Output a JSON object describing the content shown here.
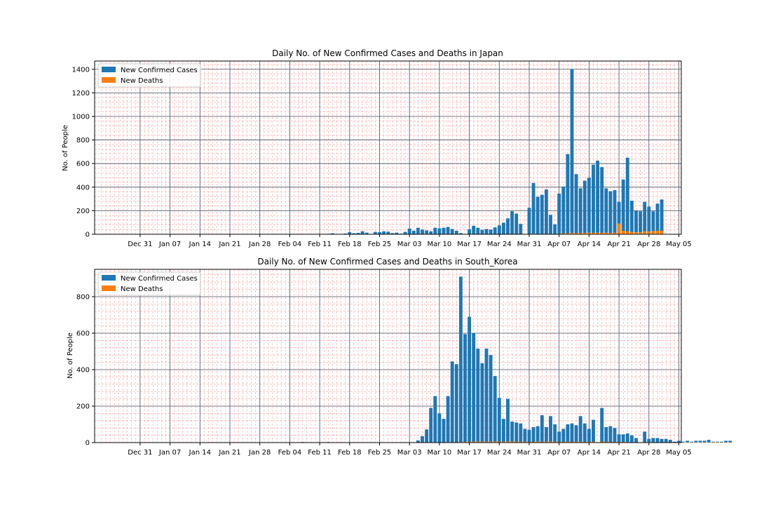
{
  "chart_data": [
    {
      "type": "bar",
      "stacked": false,
      "title": "Daily No. of New Confirmed Cases and Deaths in Japan",
      "xlabel": "",
      "ylabel": "No. of People",
      "ylim": [
        0,
        1470
      ],
      "yticks": [
        0,
        200,
        400,
        600,
        800,
        1000,
        1200,
        1400
      ],
      "x_start": "2019-12-22",
      "xticks": [
        "Dec 31",
        "Jan 07",
        "Jan 14",
        "Jan 21",
        "Jan 28",
        "Feb 04",
        "Feb 11",
        "Feb 18",
        "Feb 25",
        "Mar 03",
        "Mar 10",
        "Mar 17",
        "Mar 24",
        "Mar 31",
        "Apr 07",
        "Apr 14",
        "Apr 21",
        "Apr 28",
        "May 05"
      ],
      "grid": true,
      "legend_position": "top-left",
      "series": [
        {
          "name": "New Confirmed Cases",
          "color": "#1f77b4",
          "values": [
            0,
            0,
            0,
            0,
            0,
            0,
            0,
            0,
            0,
            0,
            0,
            0,
            0,
            0,
            0,
            0,
            0,
            0,
            0,
            0,
            0,
            0,
            0,
            0,
            0,
            0,
            0,
            0,
            0,
            0,
            0,
            0,
            0,
            0,
            0,
            0,
            0,
            0,
            0,
            0,
            0,
            0,
            0,
            0,
            0,
            0,
            0,
            0,
            0,
            0,
            0,
            0,
            0,
            4,
            8,
            3,
            0,
            6,
            18,
            9,
            12,
            25,
            14,
            0,
            20,
            18,
            25,
            22,
            10,
            14,
            5,
            20,
            48,
            30,
            55,
            40,
            33,
            25,
            55,
            50,
            55,
            62,
            45,
            30,
            10,
            0,
            42,
            72,
            55,
            38,
            45,
            40,
            58,
            75,
            98,
            135,
            195,
            175,
            88,
            0,
            225,
            435,
            318,
            335,
            380,
            165,
            85,
            345,
            405,
            680,
            1400,
            510,
            390,
            455,
            480,
            590,
            625,
            570,
            390,
            365,
            375,
            275,
            465,
            650,
            285,
            200,
            195,
            275,
            235,
            195,
            260,
            295
          ]
        },
        {
          "name": "New Deaths",
          "color": "#ff7f0e",
          "values": [
            0,
            0,
            0,
            0,
            0,
            0,
            0,
            0,
            0,
            0,
            0,
            0,
            0,
            0,
            0,
            0,
            0,
            0,
            0,
            0,
            0,
            0,
            0,
            0,
            0,
            0,
            0,
            0,
            0,
            0,
            0,
            0,
            0,
            0,
            0,
            0,
            0,
            0,
            0,
            0,
            0,
            0,
            0,
            0,
            0,
            0,
            0,
            0,
            0,
            0,
            0,
            0,
            0,
            0,
            0,
            0,
            0,
            0,
            0,
            0,
            0,
            1,
            0,
            0,
            1,
            0,
            1,
            0,
            0,
            1,
            0,
            1,
            0,
            1,
            1,
            0,
            1,
            0,
            1,
            0,
            1,
            1,
            0,
            1,
            0,
            0,
            1,
            1,
            0,
            1,
            1,
            0,
            1,
            1,
            1,
            2,
            2,
            3,
            1,
            0,
            3,
            5,
            3,
            4,
            3,
            4,
            3,
            5,
            8,
            8,
            12,
            10,
            10,
            12,
            13,
            12,
            13,
            12,
            14,
            11,
            13,
            91,
            30,
            25,
            20,
            18,
            18,
            25,
            24,
            28,
            30,
            30
          ]
        }
      ]
    },
    {
      "type": "bar",
      "stacked": false,
      "title": "Daily No. of New Confirmed Cases and Deaths in South_Korea",
      "xlabel": "",
      "ylabel": "No. of People",
      "ylim": [
        0,
        950
      ],
      "yticks": [
        0,
        200,
        400,
        600,
        800
      ],
      "x_start": "2019-12-22",
      "xticks": [
        "Dec 31",
        "Jan 07",
        "Jan 14",
        "Jan 21",
        "Jan 28",
        "Feb 04",
        "Feb 11",
        "Feb 18",
        "Feb 25",
        "Mar 03",
        "Mar 10",
        "Mar 17",
        "Mar 24",
        "Mar 31",
        "Apr 07",
        "Apr 14",
        "Apr 21",
        "Apr 28",
        "May 05"
      ],
      "grid": true,
      "legend_position": "top-left",
      "series": [
        {
          "name": "New Confirmed Cases",
          "color": "#1f77b4",
          "values": [
            0,
            0,
            0,
            0,
            0,
            0,
            0,
            0,
            0,
            0,
            0,
            0,
            0,
            0,
            0,
            0,
            0,
            0,
            0,
            0,
            0,
            0,
            0,
            0,
            0,
            0,
            0,
            0,
            0,
            0,
            0,
            0,
            0,
            0,
            0,
            0,
            0,
            0,
            0,
            0,
            0,
            0,
            0,
            0,
            0,
            2,
            1,
            3,
            2,
            0,
            0,
            0,
            1,
            3,
            1,
            0,
            0,
            0,
            0,
            2,
            0,
            0,
            0,
            0,
            0,
            0,
            0,
            0,
            0,
            0,
            0,
            0,
            0,
            0,
            12,
            35,
            72,
            190,
            255,
            160,
            130,
            255,
            445,
            430,
            910,
            595,
            690,
            600,
            515,
            435,
            515,
            480,
            365,
            245,
            130,
            240,
            115,
            110,
            105,
            75,
            70,
            85,
            90,
            150,
            85,
            145,
            100,
            60,
            75,
            100,
            105,
            95,
            145,
            105,
            75,
            125,
            0,
            190,
            85,
            90,
            80,
            45,
            45,
            50,
            40,
            25,
            0,
            60,
            20,
            25,
            25,
            20,
            20,
            15,
            5,
            10,
            5,
            10,
            5,
            10,
            10,
            10,
            15,
            5,
            5,
            5,
            10,
            10
          ]
        },
        {
          "name": "New Deaths",
          "color": "#ff7f0e",
          "values": [
            0,
            0,
            0,
            0,
            0,
            0,
            0,
            0,
            0,
            0,
            0,
            0,
            0,
            0,
            0,
            0,
            0,
            0,
            0,
            0,
            0,
            0,
            0,
            0,
            0,
            0,
            0,
            0,
            0,
            0,
            0,
            0,
            0,
            0,
            0,
            0,
            0,
            0,
            0,
            0,
            0,
            0,
            0,
            0,
            0,
            0,
            0,
            0,
            0,
            0,
            0,
            0,
            0,
            0,
            0,
            0,
            0,
            0,
            0,
            0,
            0,
            0,
            0,
            0,
            0,
            0,
            0,
            0,
            0,
            0,
            0,
            0,
            0,
            0,
            0,
            0,
            1,
            2,
            1,
            1,
            2,
            3,
            2,
            2,
            3,
            4,
            5,
            5,
            6,
            6,
            5,
            6,
            6,
            5,
            5,
            6,
            6,
            5,
            5,
            5,
            4,
            4,
            6,
            5,
            5,
            6,
            5,
            4,
            4,
            5,
            4,
            5,
            5,
            4,
            4,
            5,
            0,
            5,
            4,
            3,
            4,
            3,
            4,
            3,
            2,
            2,
            0,
            2,
            3,
            2,
            2,
            2,
            2,
            1,
            1,
            1,
            1,
            1,
            1,
            1,
            1,
            1,
            1,
            1,
            1,
            1,
            1,
            1
          ]
        }
      ]
    }
  ]
}
